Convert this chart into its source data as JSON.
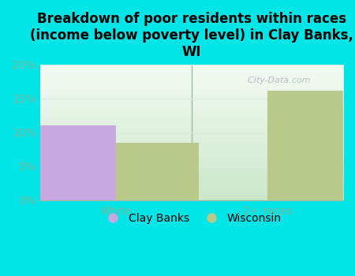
{
  "title": "Breakdown of poor residents within races\n(income below poverty level) in Clay Banks,\nWI",
  "categories": [
    "White",
    "2+ races"
  ],
  "clay_banks_values": [
    11.0,
    0.0
  ],
  "wisconsin_values": [
    8.5,
    16.1
  ],
  "clay_banks_color": "#c9a8e0",
  "wisconsin_color": "#b8c98a",
  "background_color": "#00e5e8",
  "plot_bg_top": "#f5faf5",
  "plot_bg_bottom": "#c8e8c8",
  "ylim": [
    0,
    20
  ],
  "yticks": [
    0,
    5,
    10,
    15,
    20
  ],
  "ytick_labels": [
    "0%",
    "5%",
    "10%",
    "15%",
    "20%"
  ],
  "bar_width": 0.55,
  "legend_clay_banks": "Clay Banks",
  "legend_wisconsin": "Wisconsin",
  "watermark": "  City-Data.com",
  "title_fontsize": 12,
  "tick_color": "#7ab89a",
  "grid_color": "#d8eed8",
  "separator_color": "#99bbaa"
}
